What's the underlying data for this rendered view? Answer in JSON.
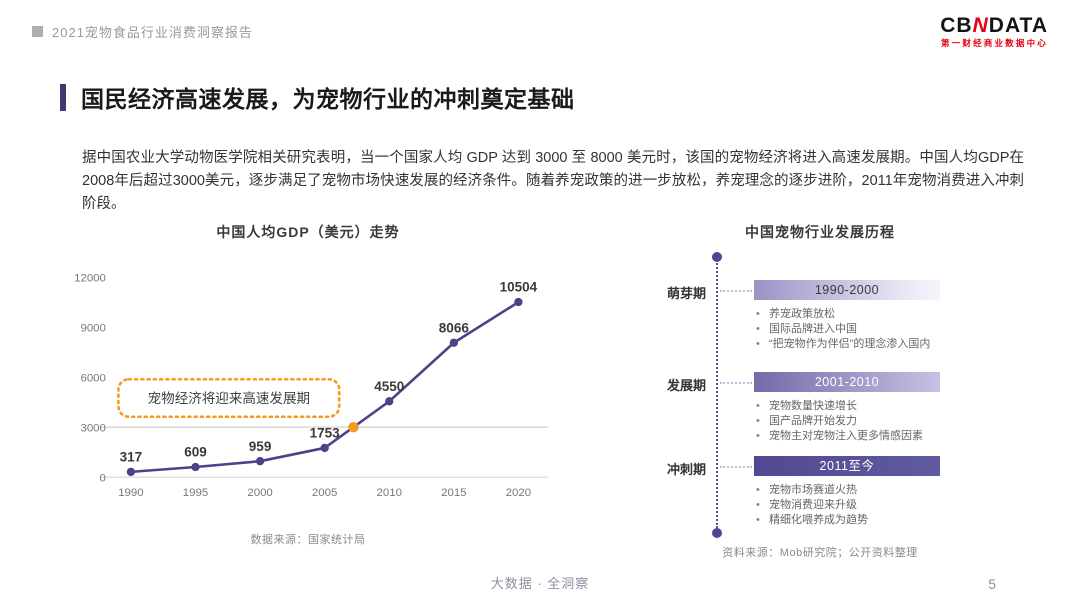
{
  "header": {
    "report_title": "2021宠物食品行业消费洞察报告",
    "logo_prefix": "CB",
    "logo_mark": "N",
    "logo_suffix": "DATA",
    "logo_subtitle": "第一财经商业数据中心"
  },
  "title": "国民经济高速发展，为宠物行业的冲刺奠定基础",
  "paragraph": "据中国农业大学动物医学院相关研究表明，当一个国家人均 GDP 达到 3000 至 8000 美元时，该国的宠物经济将进入高速发展期。中国人均GDP在2008年后超过3000美元，逐步满足了宠物市场快速发展的经济条件。随着养宠政策的进一步放松，养宠理念的逐步进阶，2011年宠物消费进入冲刺阶段。",
  "chart_data": {
    "type": "line",
    "title": "中国人均GDP（美元）走势",
    "x": [
      1990,
      1995,
      2000,
      2005,
      2010,
      2015,
      2020
    ],
    "values": [
      317,
      609,
      959,
      1753,
      4550,
      8066,
      10504
    ],
    "ylim": [
      0,
      12000
    ],
    "yticks": [
      0,
      3000,
      6000,
      9000,
      12000
    ],
    "grid": false,
    "legend": "none",
    "threshold_line": 3000,
    "annotation": "宠物经济将迎来高速发展期",
    "line_color": "#4a4387",
    "threshold_color": "#f59a23",
    "source": "数据来源：国家统计局"
  },
  "timeline": {
    "title": "中国宠物行业发展历程",
    "phases": [
      {
        "label": "萌芽期",
        "period": "1990-2000",
        "bullets": [
          "养宠政策放松",
          "国际品牌进入中国",
          "“把宠物作为伴侣”的理念渗入国内"
        ]
      },
      {
        "label": "发展期",
        "period": "2001-2010",
        "bullets": [
          "宠物数量快速增长",
          "国产品牌开始发力",
          "宠物主对宠物注入更多情感因素"
        ]
      },
      {
        "label": "冲刺期",
        "period": "2011至今",
        "bullets": [
          "宠物市场赛道火热",
          "宠物消费迎来升级",
          "精细化喂养成为趋势"
        ]
      }
    ],
    "source": "资料来源：Mob研究院；公开资料整理"
  },
  "footer": {
    "slogan": "大数据 · 全洞察",
    "page_number": "5"
  },
  "colors": {
    "accent_purple": "#4a4387",
    "accent_orange": "#f59a23",
    "brand_red": "#e60012",
    "timeline_purple": "#5a5096"
  }
}
